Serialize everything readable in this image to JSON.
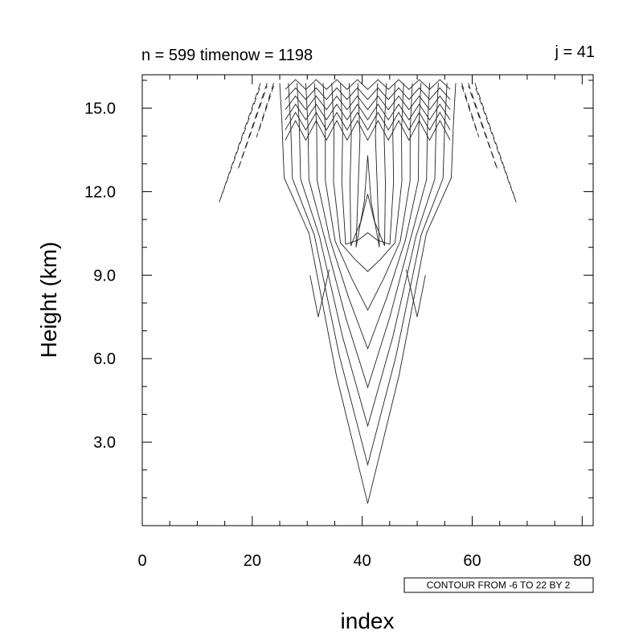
{
  "chart_data": {
    "type": "contour",
    "title_left": "n = 599 timenow = 1198",
    "title_right": "j = 41",
    "xlabel": "index",
    "ylabel": "Height (km)",
    "xlim": [
      0,
      82
    ],
    "ylim": [
      0,
      16.2
    ],
    "x_ticks": [
      0,
      20,
      40,
      60,
      80
    ],
    "x_tick_labels": [
      "0",
      "20",
      "40",
      "60",
      "80"
    ],
    "y_ticks": [
      3,
      6,
      9,
      12,
      15
    ],
    "y_tick_labels": [
      "3.0",
      "6.0",
      "9.0",
      "12.0",
      "15.0"
    ],
    "contour_info": "CONTOUR FROM -6 TO 22 BY 2",
    "contour_levels": {
      "min": -6,
      "max": 22,
      "step": 2
    },
    "negative_contours": "dashed",
    "center_index": 41,
    "core_bottom_height": 0.8,
    "upper_lobe_levels": 3,
    "core_levels": 10
  }
}
